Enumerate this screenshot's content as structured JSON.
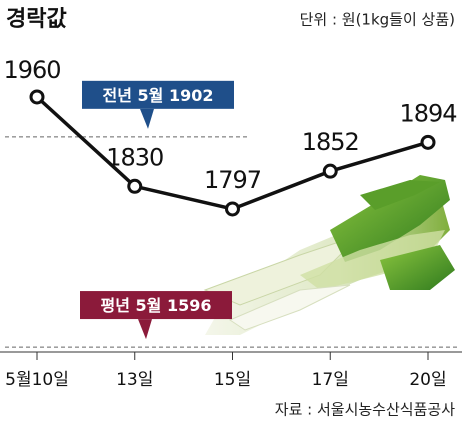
{
  "chart_data": {
    "type": "line",
    "title": "경락값",
    "subtitle": "단위 : 원(1kg들이 상품)",
    "source": "자료 : 서울시농수산식품공사",
    "categories": [
      "5월10일",
      "13일",
      "15일",
      "17일",
      "20일"
    ],
    "series": [
      {
        "name": "경락값",
        "color": "#111111",
        "values": [
          1960,
          1830,
          1797,
          1852,
          1894
        ]
      }
    ],
    "reference_lines": [
      {
        "name": "전년 5월",
        "value": 1902,
        "color": "#1f4f8a"
      },
      {
        "name": "평년 5월",
        "value": 1596,
        "color": "#8b1a3a"
      }
    ],
    "ylim": [
      1560,
      2000
    ]
  }
}
